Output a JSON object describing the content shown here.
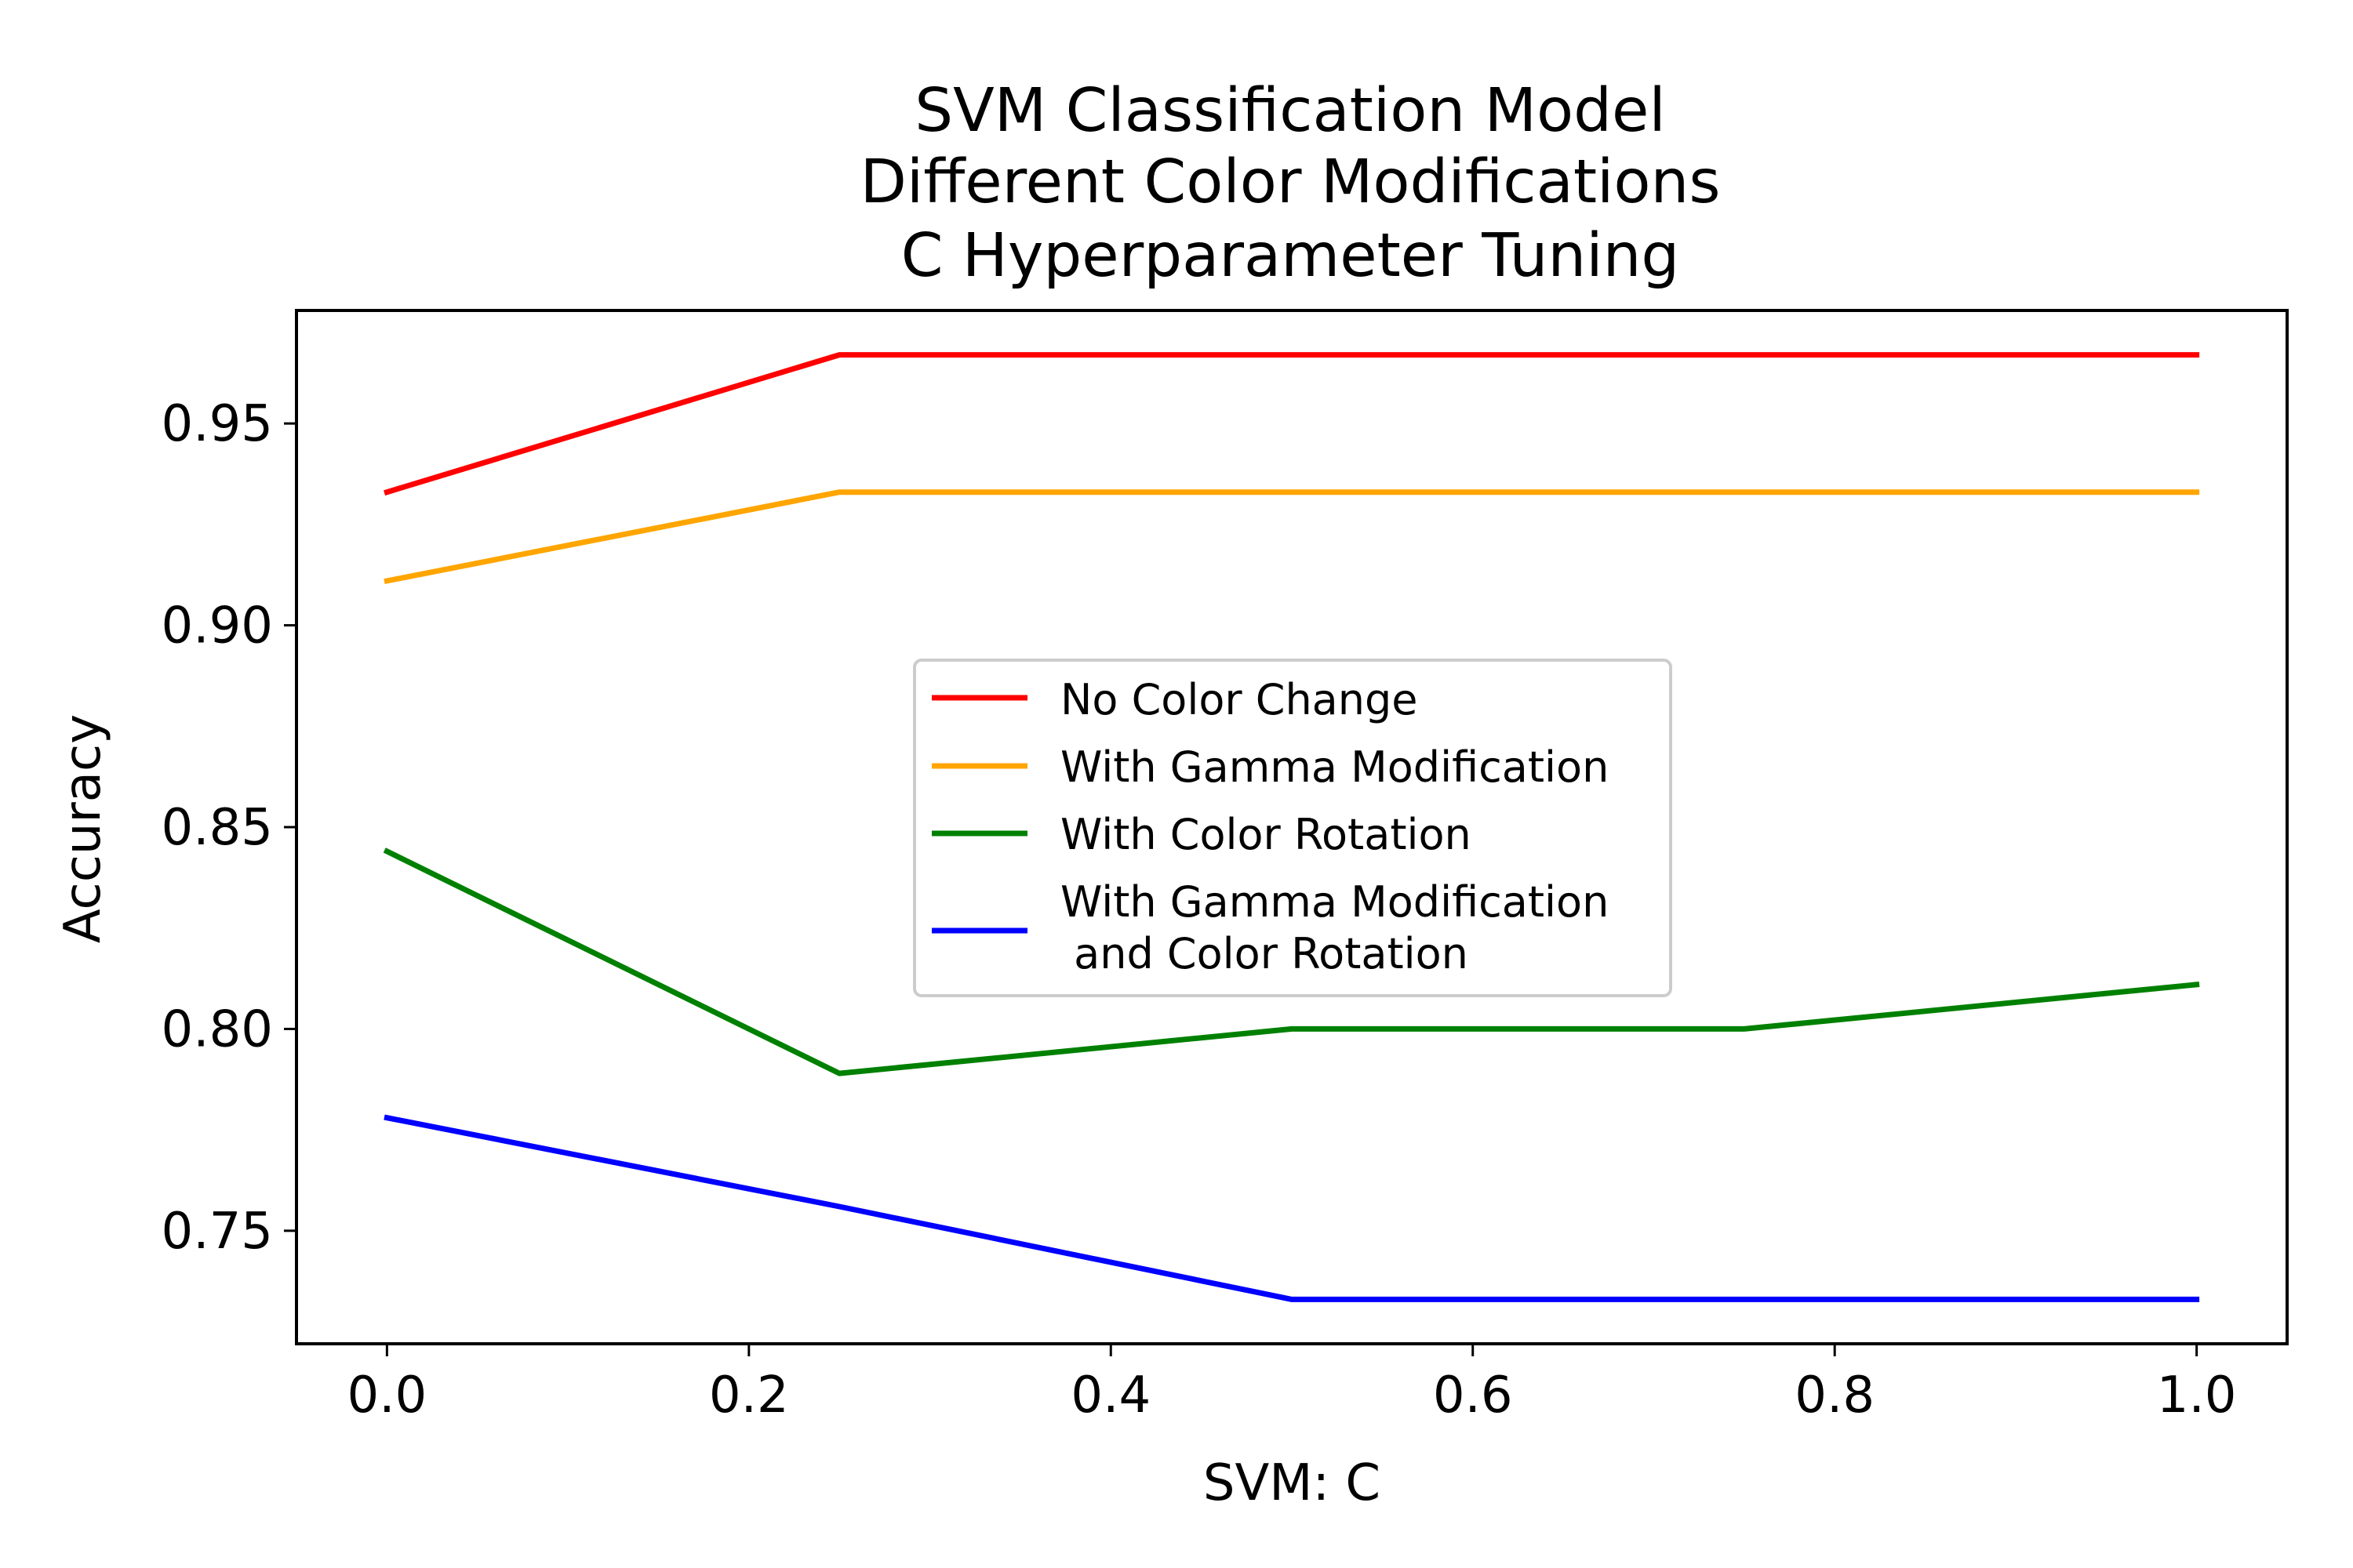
{
  "chart_data": {
    "type": "line",
    "title": [
      "SVM Classification Model",
      "Different Color Modifications",
      "C Hyperparameter Tuning"
    ],
    "xlabel": "SVM: C",
    "ylabel": "Accuracy",
    "xlim": [
      -0.05,
      1.05
    ],
    "ylim": [
      0.722,
      0.978
    ],
    "xticks": [
      0.0,
      0.2,
      0.4,
      0.6,
      0.8,
      1.0
    ],
    "xtick_labels": [
      "0.0",
      "0.2",
      "0.4",
      "0.6",
      "0.8",
      "1.0"
    ],
    "yticks": [
      0.75,
      0.8,
      0.85,
      0.9,
      0.95
    ],
    "ytick_labels": [
      "0.75",
      "0.80",
      "0.85",
      "0.90",
      "0.95"
    ],
    "grid": false,
    "legend_position": "center",
    "x": [
      0.0,
      0.25,
      0.5,
      0.75,
      1.0
    ],
    "series": [
      {
        "name": "No Color Change",
        "color": "#ff0000",
        "values": [
          0.933,
          0.967,
          0.967,
          0.967,
          0.967
        ]
      },
      {
        "name": "With Gamma Modification",
        "color": "#ffa500",
        "values": [
          0.911,
          0.933,
          0.933,
          0.933,
          0.933
        ]
      },
      {
        "name": "With Color Rotation",
        "color": "#008000",
        "values": [
          0.844,
          0.789,
          0.8,
          0.8,
          0.811
        ]
      },
      {
        "name": "With Gamma Modification\n and Color Rotation",
        "color": "#0000ff",
        "values": [
          0.778,
          0.756,
          0.733,
          0.733,
          0.733
        ]
      }
    ]
  }
}
